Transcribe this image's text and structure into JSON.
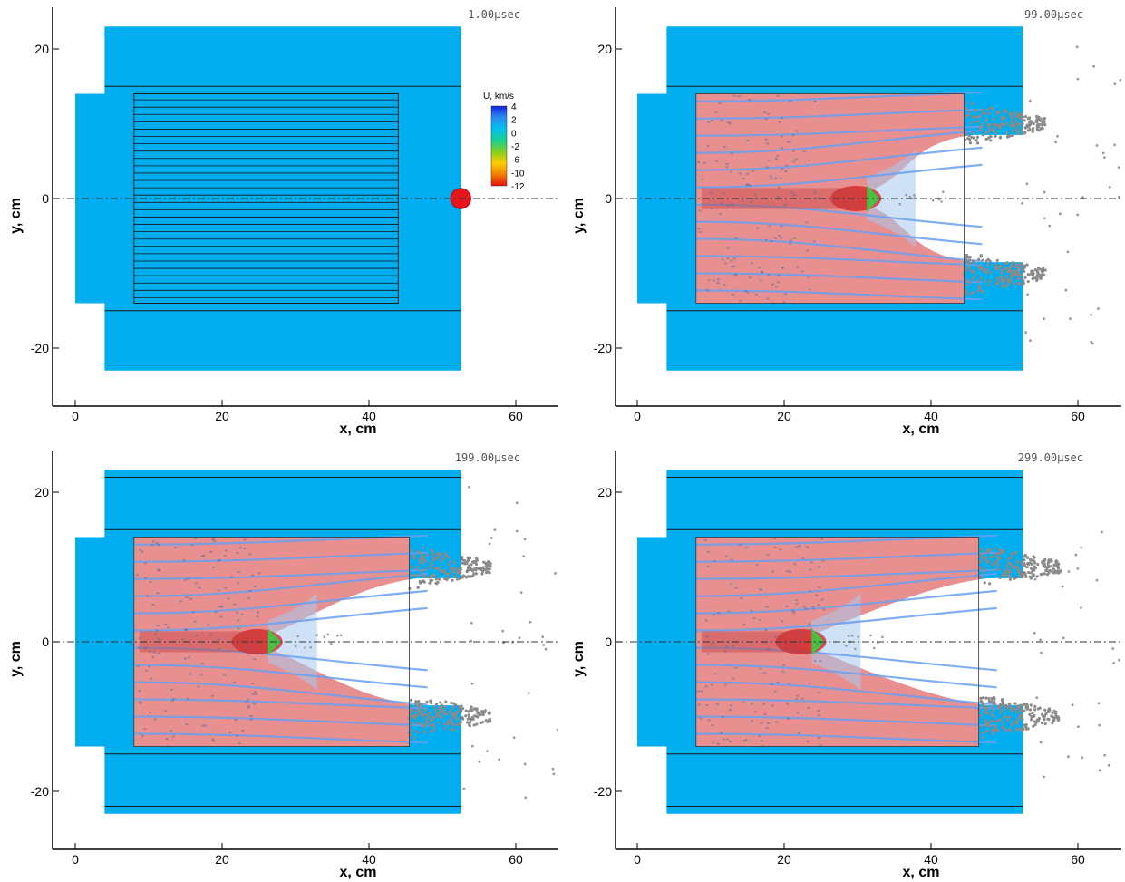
{
  "chart_data": [
    {
      "type": "contour",
      "time_label": "1.00μsec",
      "xlabel": "x, cm",
      "ylabel": "y, cm",
      "xlim": [
        -3,
        65
      ],
      "ylim": [
        -27,
        25
      ],
      "xticks": [
        0,
        20,
        40,
        60
      ],
      "yticks": [
        -20,
        0,
        20
      ],
      "target_outline": {
        "tail": [
          0,
          14
        ],
        "outer": [
          4,
          52.5
        ],
        "core_x": [
          8,
          44
        ]
      },
      "projectile": {
        "x": 52.5,
        "y": 0,
        "r": 1.4,
        "color": "#e8141c"
      },
      "penetration_front": {
        "x": 51
      },
      "legend": {
        "title": "U, km/s",
        "labels": [
          "4",
          "2",
          "0",
          "-2",
          "-6",
          "-10",
          "-12"
        ],
        "colors": [
          "#1020e0",
          "#2a8cf0",
          "#00c0f0",
          "#18d090",
          "#80d020",
          "#ffcc00",
          "#f08000",
          "#e81010"
        ]
      }
    },
    {
      "type": "contour",
      "time_label": "99.00μsec",
      "xlabel": "x, cm",
      "ylabel": "y, cm",
      "xlim": [
        -3,
        65
      ],
      "ylim": [
        -27,
        25
      ],
      "xticks": [
        0,
        20,
        40,
        60
      ],
      "yticks": [
        -20,
        0,
        20
      ],
      "core_x": [
        8,
        44.5
      ],
      "penetration_front": {
        "x": 32
      }
    },
    {
      "type": "contour",
      "time_label": "199.00μsec",
      "xlabel": "x, cm",
      "ylabel": "y, cm",
      "xlim": [
        -3,
        65
      ],
      "ylim": [
        -27,
        25
      ],
      "xticks": [
        0,
        20,
        40,
        60
      ],
      "yticks": [
        -20,
        0,
        20
      ],
      "core_x": [
        8,
        45.5
      ],
      "penetration_front": {
        "x": 27
      }
    },
    {
      "type": "contour",
      "time_label": "299.00μsec",
      "xlabel": "x, cm",
      "ylabel": "y, cm",
      "xlim": [
        -3,
        65
      ],
      "ylim": [
        -27,
        25
      ],
      "xticks": [
        0,
        20,
        40,
        60
      ],
      "yticks": [
        -20,
        0,
        20
      ],
      "core_x": [
        8,
        46.5
      ],
      "penetration_front": {
        "x": 24.5
      }
    }
  ],
  "colors": {
    "target": "#00aeef",
    "eroded": "#e89090",
    "eroded_dark": "#c84040",
    "debris": "#8a8a8a",
    "jet_core": "#d02020",
    "slow_zone": "#a8c8f0",
    "front": "#48c040"
  }
}
